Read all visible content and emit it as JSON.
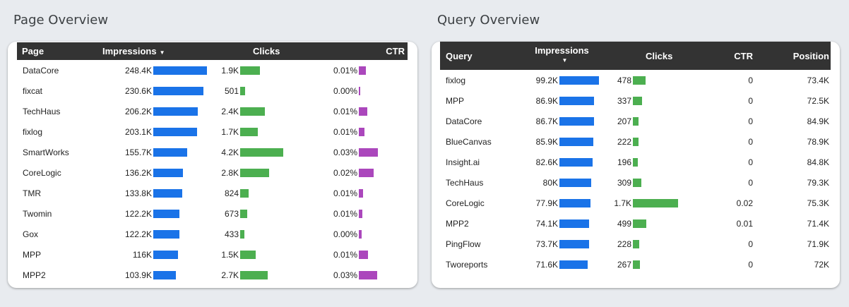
{
  "page_overview": {
    "title": "Page Overview",
    "headers": {
      "page": "Page",
      "impressions": "Impressions",
      "clicks": "Clicks",
      "ctr": "CTR"
    },
    "sort_icon": "sort-desc-arrow",
    "rows": [
      {
        "page": "DataCore",
        "impressions": "248.4K",
        "impr_val": 248.4,
        "clicks": "1.9K",
        "clicks_val": 1.9,
        "ctr": "0.01%",
        "ctr_val": 0.01
      },
      {
        "page": "fixcat",
        "impressions": "230.6K",
        "impr_val": 230.6,
        "clicks": "501",
        "clicks_val": 0.501,
        "ctr": "0.00%",
        "ctr_val": 0.002
      },
      {
        "page": "TechHaus",
        "impressions": "206.2K",
        "impr_val": 206.2,
        "clicks": "2.4K",
        "clicks_val": 2.4,
        "ctr": "0.01%",
        "ctr_val": 0.012
      },
      {
        "page": "fixlog",
        "impressions": "203.1K",
        "impr_val": 203.1,
        "clicks": "1.7K",
        "clicks_val": 1.7,
        "ctr": "0.01%",
        "ctr_val": 0.008
      },
      {
        "page": "SmartWorks",
        "impressions": "155.7K",
        "impr_val": 155.7,
        "clicks": "4.2K",
        "clicks_val": 4.2,
        "ctr": "0.03%",
        "ctr_val": 0.027
      },
      {
        "page": "CoreLogic",
        "impressions": "136.2K",
        "impr_val": 136.2,
        "clicks": "2.8K",
        "clicks_val": 2.8,
        "ctr": "0.02%",
        "ctr_val": 0.021
      },
      {
        "page": "TMR",
        "impressions": "133.8K",
        "impr_val": 133.8,
        "clicks": "824",
        "clicks_val": 0.824,
        "ctr": "0.01%",
        "ctr_val": 0.006
      },
      {
        "page": "Twomin",
        "impressions": "122.2K",
        "impr_val": 122.2,
        "clicks": "673",
        "clicks_val": 0.673,
        "ctr": "0.01%",
        "ctr_val": 0.005
      },
      {
        "page": "Gox",
        "impressions": "122.2K",
        "impr_val": 122.2,
        "clicks": "433",
        "clicks_val": 0.433,
        "ctr": "0.00%",
        "ctr_val": 0.0035
      },
      {
        "page": "MPP",
        "impressions": "116K",
        "impr_val": 116,
        "clicks": "1.5K",
        "clicks_val": 1.5,
        "ctr": "0.01%",
        "ctr_val": 0.013
      },
      {
        "page": "MPP2",
        "impressions": "103.9K",
        "impr_val": 103.9,
        "clicks": "2.7K",
        "clicks_val": 2.7,
        "ctr": "0.03%",
        "ctr_val": 0.026
      }
    ]
  },
  "query_overview": {
    "title": "Query Overview",
    "headers": {
      "query": "Query",
      "impressions": "Impressions",
      "clicks": "Clicks",
      "ctr": "CTR",
      "position": "Position"
    },
    "sort_icon": "sort-desc-arrow",
    "rows": [
      {
        "query": "fixlog",
        "impressions": "99.2K",
        "impr_val": 99.2,
        "clicks": "478",
        "clicks_val": 478,
        "ctr": "0",
        "position": "73.4K"
      },
      {
        "query": "MPP",
        "impressions": "86.9K",
        "impr_val": 86.9,
        "clicks": "337",
        "clicks_val": 337,
        "ctr": "0",
        "position": "72.5K"
      },
      {
        "query": "DataCore",
        "impressions": "86.7K",
        "impr_val": 86.7,
        "clicks": "207",
        "clicks_val": 207,
        "ctr": "0",
        "position": "84.9K"
      },
      {
        "query": "BlueCanvas",
        "impressions": "85.9K",
        "impr_val": 85.9,
        "clicks": "222",
        "clicks_val": 222,
        "ctr": "0",
        "position": "78.9K"
      },
      {
        "query": "Insight.ai",
        "impressions": "82.6K",
        "impr_val": 82.6,
        "clicks": "196",
        "clicks_val": 196,
        "ctr": "0",
        "position": "84.8K"
      },
      {
        "query": "TechHaus",
        "impressions": "80K",
        "impr_val": 80.0,
        "clicks": "309",
        "clicks_val": 309,
        "ctr": "0",
        "position": "79.3K"
      },
      {
        "query": "CoreLogic",
        "impressions": "77.9K",
        "impr_val": 77.9,
        "clicks": "1.7K",
        "clicks_val": 1700,
        "ctr": "0.02",
        "position": "75.3K"
      },
      {
        "query": "MPP2",
        "impressions": "74.1K",
        "impr_val": 74.1,
        "clicks": "499",
        "clicks_val": 499,
        "ctr": "0.01",
        "position": "71.4K"
      },
      {
        "query": "PingFlow",
        "impressions": "73.7K",
        "impr_val": 73.7,
        "clicks": "228",
        "clicks_val": 228,
        "ctr": "0",
        "position": "71.9K"
      },
      {
        "query": "Tworeports",
        "impressions": "71.6K",
        "impr_val": 71.6,
        "clicks": "267",
        "clicks_val": 267,
        "ctr": "0",
        "position": "72K"
      }
    ]
  },
  "colors": {
    "impressions_bar": "#1a73e8",
    "clicks_bar": "#4caf50",
    "ctr_bar": "#ab47bc",
    "header_bg": "#333333"
  }
}
